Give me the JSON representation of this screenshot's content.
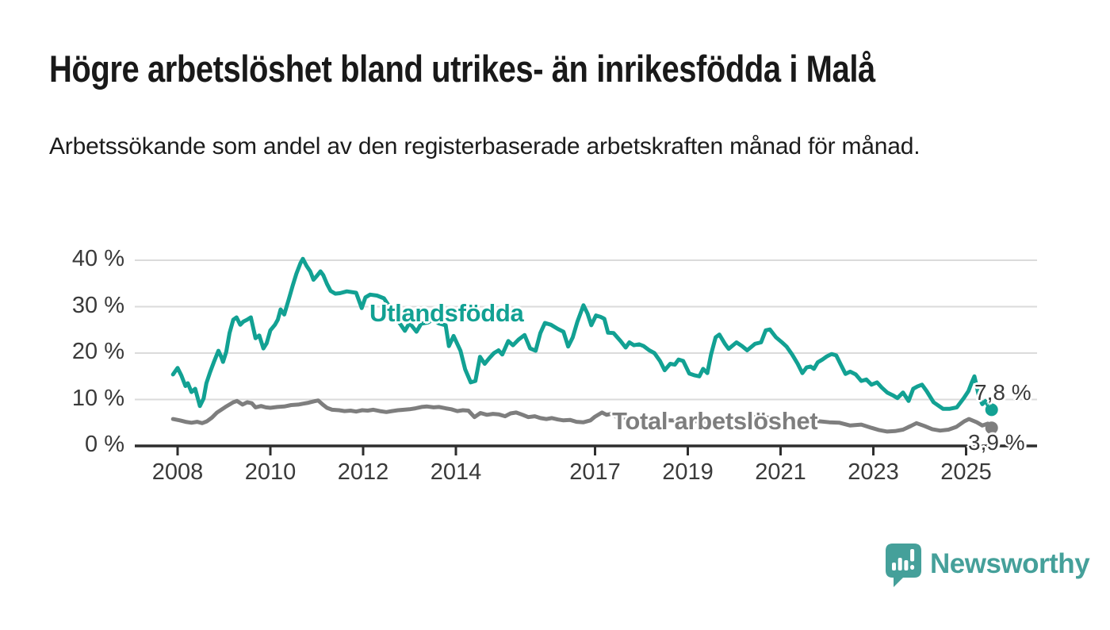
{
  "header": {
    "title": "Högre arbetslöshet bland utrikes- än inrikesfödda i Malå",
    "subtitle": "Arbetssökande som andel av den registerbaserade arbetskraften månad för månad."
  },
  "chart_data": {
    "type": "line",
    "unit": "percent of registered labour force",
    "grid": "horizontal",
    "ylim": [
      0,
      43
    ],
    "xlim": [
      2007.1,
      2026.5
    ],
    "y_ticks": [
      {
        "value": 0,
        "label": "0 %"
      },
      {
        "value": 10,
        "label": "10 %"
      },
      {
        "value": 20,
        "label": "20 %"
      },
      {
        "value": 30,
        "label": "30 %"
      },
      {
        "value": 40,
        "label": "40 %"
      }
    ],
    "x_ticks": [
      {
        "value": 2008,
        "label": "2008"
      },
      {
        "value": 2010,
        "label": "2010"
      },
      {
        "value": 2012,
        "label": "2012"
      },
      {
        "value": 2014,
        "label": "2014"
      },
      {
        "value": 2017,
        "label": "2017"
      },
      {
        "value": 2019,
        "label": "2019"
      },
      {
        "value": 2021,
        "label": "2021"
      },
      {
        "value": 2023,
        "label": "2023"
      },
      {
        "value": 2025,
        "label": "2025"
      }
    ],
    "axis_color": "#2e2e2e",
    "gridline_color": "#dbdbdb",
    "series": [
      {
        "name": "Utlandsfödda",
        "color": "#12a193",
        "end_label": "7,8 %",
        "end_value": 7.8,
        "points": [
          [
            2007.9,
            15.4
          ],
          [
            2008.0,
            16.8
          ],
          [
            2008.08,
            15.2
          ],
          [
            2008.17,
            12.9
          ],
          [
            2008.22,
            13.5
          ],
          [
            2008.3,
            11.6
          ],
          [
            2008.38,
            12.3
          ],
          [
            2008.48,
            8.6
          ],
          [
            2008.56,
            10.2
          ],
          [
            2008.62,
            13.5
          ],
          [
            2008.7,
            15.9
          ],
          [
            2008.78,
            18.0
          ],
          [
            2008.88,
            20.5
          ],
          [
            2008.94,
            19.2
          ],
          [
            2008.98,
            18.1
          ],
          [
            2009.05,
            20.3
          ],
          [
            2009.12,
            24.3
          ],
          [
            2009.2,
            27.2
          ],
          [
            2009.27,
            27.7
          ],
          [
            2009.35,
            26.1
          ],
          [
            2009.42,
            26.8
          ],
          [
            2009.5,
            27.2
          ],
          [
            2009.58,
            27.7
          ],
          [
            2009.68,
            23.2
          ],
          [
            2009.76,
            23.8
          ],
          [
            2009.85,
            21.0
          ],
          [
            2009.92,
            22.1
          ],
          [
            2010.0,
            24.9
          ],
          [
            2010.1,
            26.1
          ],
          [
            2010.16,
            27.2
          ],
          [
            2010.22,
            29.4
          ],
          [
            2010.3,
            28.3
          ],
          [
            2010.4,
            31.7
          ],
          [
            2010.48,
            34.5
          ],
          [
            2010.56,
            37.1
          ],
          [
            2010.65,
            39.4
          ],
          [
            2010.7,
            40.3
          ],
          [
            2010.78,
            38.8
          ],
          [
            2010.86,
            37.6
          ],
          [
            2010.93,
            35.8
          ],
          [
            2011.0,
            36.6
          ],
          [
            2011.08,
            37.6
          ],
          [
            2011.14,
            36.8
          ],
          [
            2011.22,
            34.9
          ],
          [
            2011.3,
            33.4
          ],
          [
            2011.4,
            32.8
          ],
          [
            2011.5,
            32.9
          ],
          [
            2011.65,
            33.3
          ],
          [
            2011.85,
            33.0
          ],
          [
            2011.97,
            29.7
          ],
          [
            2012.05,
            32.0
          ],
          [
            2012.15,
            32.6
          ],
          [
            2012.3,
            32.4
          ],
          [
            2012.45,
            31.8
          ],
          [
            2012.6,
            29.5
          ],
          [
            2012.75,
            27.0
          ],
          [
            2012.9,
            24.8
          ],
          [
            2013.0,
            26.5
          ],
          [
            2013.15,
            24.6
          ],
          [
            2013.25,
            26.3
          ],
          [
            2013.4,
            26.6
          ],
          [
            2013.5,
            27.2
          ],
          [
            2013.63,
            26.4
          ],
          [
            2013.78,
            26.0
          ],
          [
            2013.85,
            21.5
          ],
          [
            2013.95,
            23.7
          ],
          [
            2014.1,
            20.5
          ],
          [
            2014.2,
            16.5
          ],
          [
            2014.32,
            13.7
          ],
          [
            2014.42,
            14.0
          ],
          [
            2014.52,
            19.2
          ],
          [
            2014.62,
            17.7
          ],
          [
            2014.72,
            18.9
          ],
          [
            2014.82,
            20.0
          ],
          [
            2014.92,
            20.6
          ],
          [
            2015.0,
            19.7
          ],
          [
            2015.13,
            22.6
          ],
          [
            2015.23,
            21.7
          ],
          [
            2015.35,
            22.9
          ],
          [
            2015.48,
            23.9
          ],
          [
            2015.6,
            21.0
          ],
          [
            2015.72,
            20.5
          ],
          [
            2015.82,
            24.3
          ],
          [
            2015.92,
            26.5
          ],
          [
            2016.05,
            26.1
          ],
          [
            2016.2,
            25.2
          ],
          [
            2016.32,
            24.6
          ],
          [
            2016.42,
            21.4
          ],
          [
            2016.52,
            23.4
          ],
          [
            2016.62,
            26.8
          ],
          [
            2016.75,
            30.3
          ],
          [
            2016.84,
            28.5
          ],
          [
            2016.92,
            26.0
          ],
          [
            2017.02,
            28.1
          ],
          [
            2017.12,
            27.8
          ],
          [
            2017.2,
            27.4
          ],
          [
            2017.28,
            24.4
          ],
          [
            2017.4,
            24.3
          ],
          [
            2017.55,
            22.6
          ],
          [
            2017.66,
            21.2
          ],
          [
            2017.74,
            22.3
          ],
          [
            2017.84,
            21.7
          ],
          [
            2017.95,
            21.9
          ],
          [
            2018.05,
            21.5
          ],
          [
            2018.17,
            20.6
          ],
          [
            2018.28,
            20.0
          ],
          [
            2018.4,
            18.3
          ],
          [
            2018.5,
            16.3
          ],
          [
            2018.62,
            17.7
          ],
          [
            2018.72,
            17.5
          ],
          [
            2018.8,
            18.6
          ],
          [
            2018.9,
            18.3
          ],
          [
            2019.03,
            15.6
          ],
          [
            2019.15,
            15.2
          ],
          [
            2019.25,
            15.0
          ],
          [
            2019.33,
            16.6
          ],
          [
            2019.42,
            15.7
          ],
          [
            2019.5,
            19.7
          ],
          [
            2019.6,
            23.4
          ],
          [
            2019.68,
            24.0
          ],
          [
            2019.8,
            22.0
          ],
          [
            2019.88,
            20.9
          ],
          [
            2020.05,
            22.3
          ],
          [
            2020.17,
            21.5
          ],
          [
            2020.28,
            20.6
          ],
          [
            2020.45,
            22.0
          ],
          [
            2020.58,
            22.3
          ],
          [
            2020.68,
            24.9
          ],
          [
            2020.77,
            25.1
          ],
          [
            2020.9,
            23.4
          ],
          [
            2021.03,
            22.3
          ],
          [
            2021.13,
            21.4
          ],
          [
            2021.25,
            19.7
          ],
          [
            2021.37,
            17.7
          ],
          [
            2021.47,
            15.7
          ],
          [
            2021.56,
            16.9
          ],
          [
            2021.65,
            17.1
          ],
          [
            2021.72,
            16.6
          ],
          [
            2021.8,
            18.0
          ],
          [
            2021.9,
            18.6
          ],
          [
            2022.0,
            19.3
          ],
          [
            2022.1,
            19.8
          ],
          [
            2022.2,
            19.5
          ],
          [
            2022.3,
            17.5
          ],
          [
            2022.4,
            15.5
          ],
          [
            2022.5,
            16.0
          ],
          [
            2022.62,
            15.4
          ],
          [
            2022.74,
            14.0
          ],
          [
            2022.85,
            14.3
          ],
          [
            2022.96,
            13.2
          ],
          [
            2023.08,
            13.7
          ],
          [
            2023.18,
            12.6
          ],
          [
            2023.3,
            11.5
          ],
          [
            2023.42,
            10.9
          ],
          [
            2023.52,
            10.3
          ],
          [
            2023.64,
            11.5
          ],
          [
            2023.76,
            9.7
          ],
          [
            2023.86,
            12.3
          ],
          [
            2023.95,
            12.8
          ],
          [
            2024.05,
            13.2
          ],
          [
            2024.15,
            11.8
          ],
          [
            2024.3,
            9.4
          ],
          [
            2024.5,
            8.0
          ],
          [
            2024.65,
            8.0
          ],
          [
            2024.8,
            8.3
          ],
          [
            2024.95,
            10.3
          ],
          [
            2025.05,
            11.8
          ],
          [
            2025.12,
            13.6
          ],
          [
            2025.18,
            15.0
          ],
          [
            2025.28,
            10.5
          ],
          [
            2025.35,
            9.0
          ],
          [
            2025.42,
            9.7
          ],
          [
            2025.48,
            8.6
          ],
          [
            2025.55,
            7.8
          ]
        ]
      },
      {
        "name": "Total arbetslöshet",
        "color": "#7e7e7e",
        "end_label": "3,9 %",
        "end_value": 3.9,
        "points": [
          [
            2007.9,
            5.8
          ],
          [
            2008.05,
            5.5
          ],
          [
            2008.17,
            5.2
          ],
          [
            2008.3,
            5.0
          ],
          [
            2008.42,
            5.2
          ],
          [
            2008.53,
            4.9
          ],
          [
            2008.63,
            5.3
          ],
          [
            2008.74,
            6.1
          ],
          [
            2008.85,
            7.2
          ],
          [
            2009.03,
            8.4
          ],
          [
            2009.2,
            9.4
          ],
          [
            2009.28,
            9.7
          ],
          [
            2009.4,
            8.9
          ],
          [
            2009.5,
            9.4
          ],
          [
            2009.6,
            9.2
          ],
          [
            2009.68,
            8.3
          ],
          [
            2009.8,
            8.6
          ],
          [
            2009.9,
            8.3
          ],
          [
            2010.0,
            8.2
          ],
          [
            2010.15,
            8.4
          ],
          [
            2010.3,
            8.5
          ],
          [
            2010.45,
            8.8
          ],
          [
            2010.6,
            8.9
          ],
          [
            2010.7,
            9.1
          ],
          [
            2010.82,
            9.3
          ],
          [
            2010.94,
            9.6
          ],
          [
            2011.03,
            9.8
          ],
          [
            2011.13,
            8.9
          ],
          [
            2011.22,
            8.2
          ],
          [
            2011.33,
            7.8
          ],
          [
            2011.48,
            7.7
          ],
          [
            2011.6,
            7.5
          ],
          [
            2011.73,
            7.6
          ],
          [
            2011.85,
            7.4
          ],
          [
            2011.98,
            7.7
          ],
          [
            2012.1,
            7.6
          ],
          [
            2012.22,
            7.8
          ],
          [
            2012.36,
            7.5
          ],
          [
            2012.5,
            7.3
          ],
          [
            2012.62,
            7.5
          ],
          [
            2012.75,
            7.7
          ],
          [
            2012.88,
            7.8
          ],
          [
            2013.0,
            7.9
          ],
          [
            2013.13,
            8.1
          ],
          [
            2013.26,
            8.4
          ],
          [
            2013.38,
            8.5
          ],
          [
            2013.52,
            8.3
          ],
          [
            2013.64,
            8.4
          ],
          [
            2013.78,
            8.1
          ],
          [
            2013.9,
            7.9
          ],
          [
            2014.03,
            7.5
          ],
          [
            2014.15,
            7.7
          ],
          [
            2014.27,
            7.6
          ],
          [
            2014.4,
            6.2
          ],
          [
            2014.53,
            7.1
          ],
          [
            2014.67,
            6.7
          ],
          [
            2014.8,
            6.9
          ],
          [
            2014.92,
            6.8
          ],
          [
            2015.06,
            6.4
          ],
          [
            2015.18,
            7.0
          ],
          [
            2015.3,
            7.2
          ],
          [
            2015.44,
            6.7
          ],
          [
            2015.56,
            6.2
          ],
          [
            2015.7,
            6.4
          ],
          [
            2015.82,
            6.0
          ],
          [
            2015.95,
            5.8
          ],
          [
            2016.07,
            6.0
          ],
          [
            2016.2,
            5.7
          ],
          [
            2016.32,
            5.5
          ],
          [
            2016.46,
            5.6
          ],
          [
            2016.6,
            5.2
          ],
          [
            2016.75,
            5.1
          ],
          [
            2016.9,
            5.5
          ],
          [
            2017.0,
            6.3
          ],
          [
            2017.15,
            7.2
          ],
          [
            2017.25,
            6.7
          ],
          [
            2017.35,
            6.9
          ],
          [
            2017.45,
            6.3
          ],
          [
            2017.6,
            6.1
          ],
          [
            2017.8,
            5.9
          ],
          [
            2018.0,
            5.8
          ],
          [
            2018.3,
            5.6
          ],
          [
            2018.6,
            5.5
          ],
          [
            2018.9,
            5.4
          ],
          [
            2019.2,
            5.3
          ],
          [
            2019.5,
            5.2
          ],
          [
            2019.8,
            5.4
          ],
          [
            2020.1,
            5.8
          ],
          [
            2020.4,
            6.2
          ],
          [
            2020.7,
            6.1
          ],
          [
            2021.0,
            5.9
          ],
          [
            2021.3,
            5.7
          ],
          [
            2021.6,
            5.5
          ],
          [
            2021.85,
            5.3
          ],
          [
            2022.05,
            5.1
          ],
          [
            2022.27,
            5.0
          ],
          [
            2022.5,
            4.4
          ],
          [
            2022.74,
            4.6
          ],
          [
            2022.96,
            3.9
          ],
          [
            2023.13,
            3.4
          ],
          [
            2023.3,
            3.1
          ],
          [
            2023.47,
            3.2
          ],
          [
            2023.64,
            3.5
          ],
          [
            2023.81,
            4.3
          ],
          [
            2023.93,
            4.9
          ],
          [
            2024.1,
            4.3
          ],
          [
            2024.27,
            3.6
          ],
          [
            2024.44,
            3.3
          ],
          [
            2024.62,
            3.5
          ],
          [
            2024.79,
            4.1
          ],
          [
            2024.96,
            5.3
          ],
          [
            2025.06,
            5.8
          ],
          [
            2025.23,
            5.1
          ],
          [
            2025.35,
            4.4
          ],
          [
            2025.47,
            4.8
          ],
          [
            2025.55,
            3.9
          ]
        ]
      }
    ]
  },
  "branding": {
    "name": "Newsworthy",
    "color": "#45a09a"
  }
}
